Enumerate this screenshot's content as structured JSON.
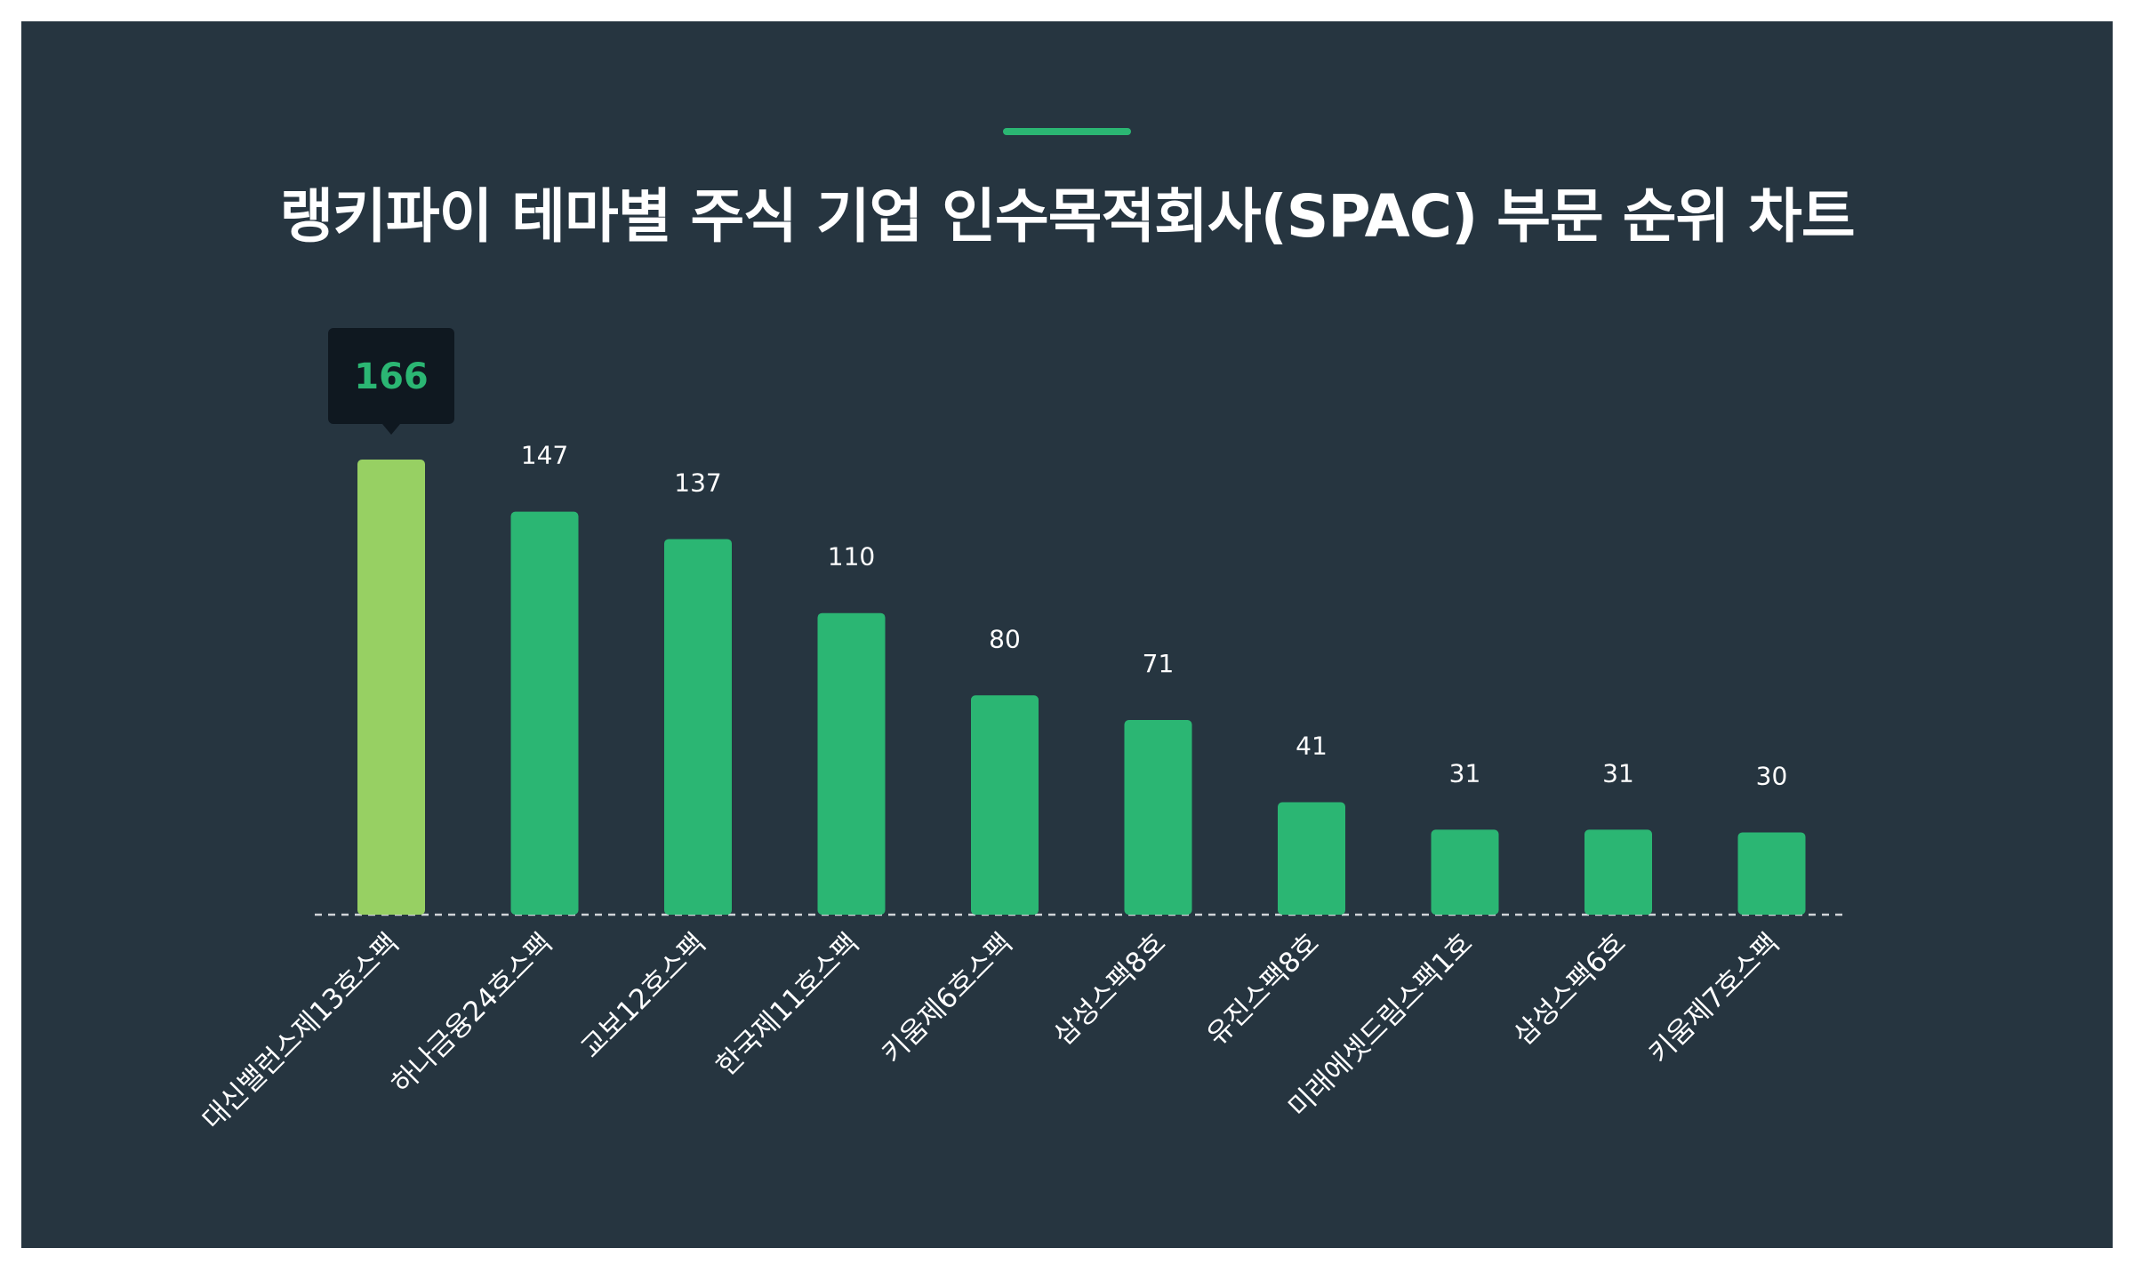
{
  "title": "랭키파이 테마별 주식 기업 인수목적회사(SPAC) 부문 순위 차트",
  "colors": {
    "background": "#263540",
    "bar": "#2bb673",
    "highlight_bar": "#97d063",
    "accent": "#2bb673",
    "tooltip_bg": "#0f1820",
    "tooltip_text": "#2bb673",
    "baseline": "#d0d4d8"
  },
  "tooltip": {
    "value": "166"
  },
  "chart_data": {
    "type": "bar",
    "title": "랭키파이 테마별 주식 기업 인수목적회사(SPAC) 부문 순위 차트",
    "xlabel": "",
    "ylabel": "",
    "categories": [
      "대신밸런스제13호스팩",
      "하나금융24호스팩",
      "교보12호스팩",
      "한국제11호스팩",
      "키움제6호스팩",
      "삼성스팩8호",
      "유진스팩8호",
      "미래에셋드림스팩1호",
      "삼성스팩6호",
      "키움제7호스팩"
    ],
    "values": [
      166,
      147,
      137,
      110,
      80,
      71,
      41,
      31,
      31,
      30
    ],
    "highlight_index": 0,
    "ylim": [
      0,
      166
    ],
    "grid": false,
    "legend": "none"
  }
}
